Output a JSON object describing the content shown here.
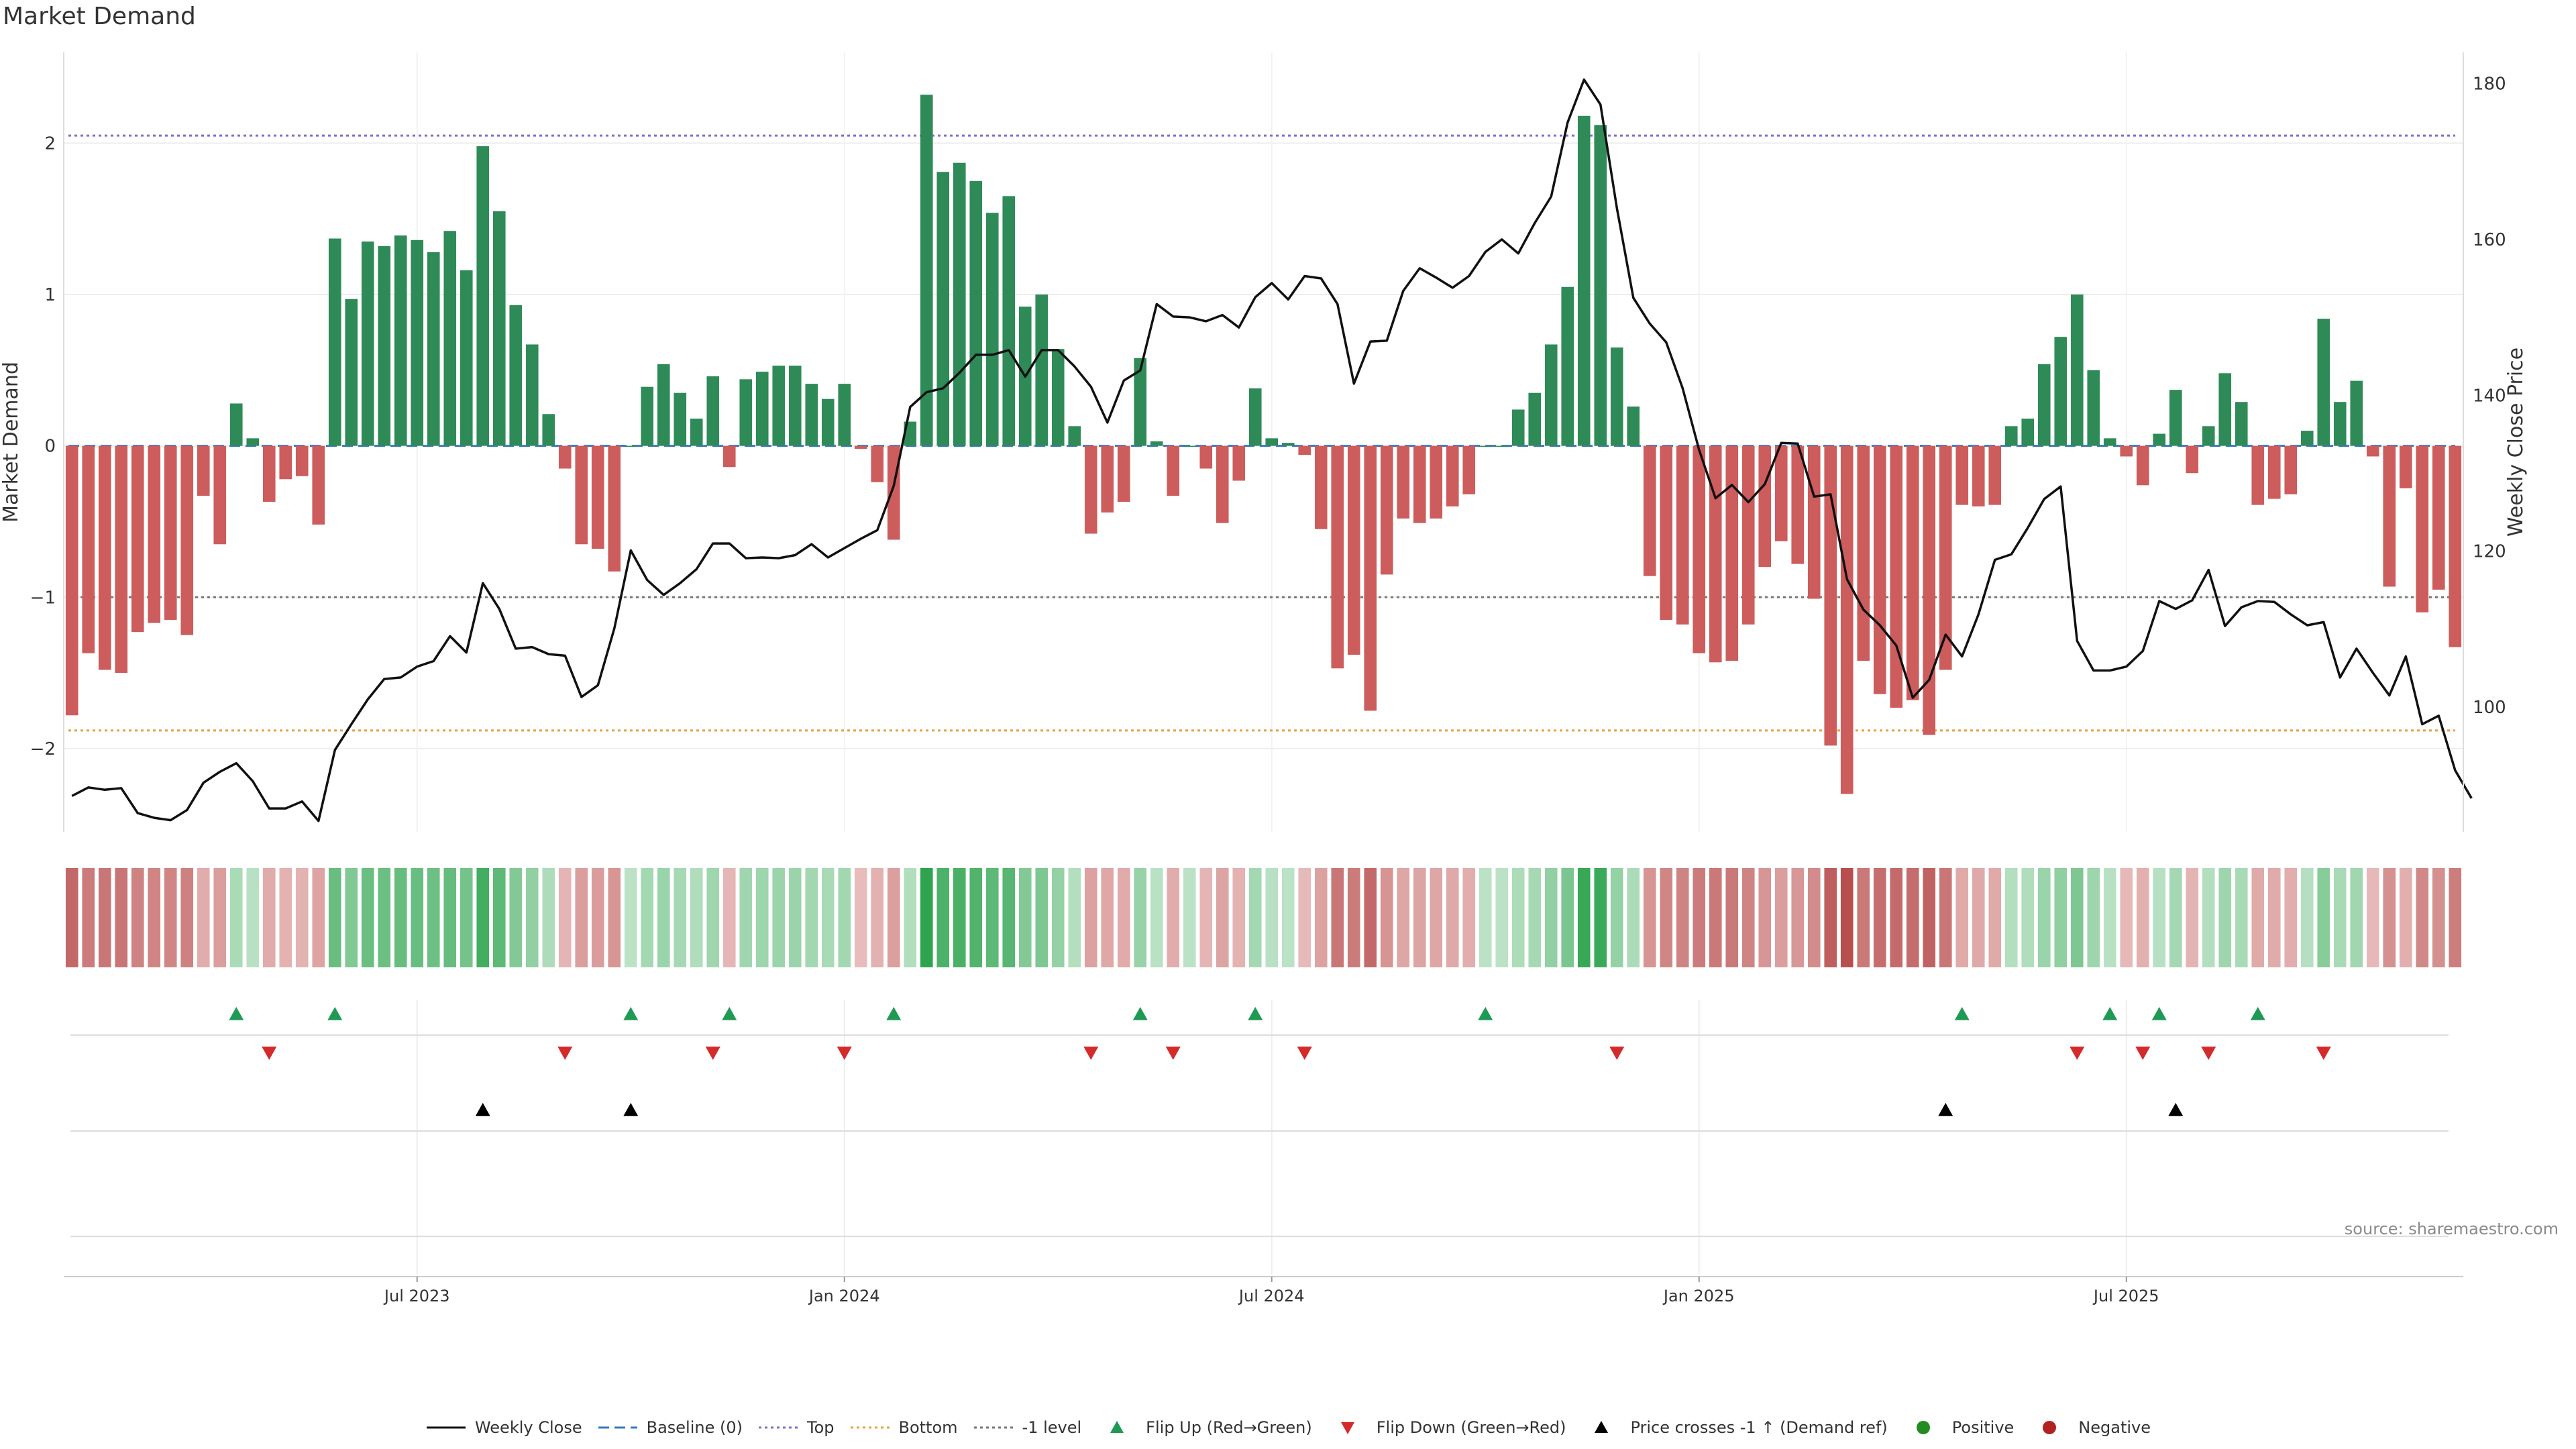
{
  "chart_data": {
    "type": "bar",
    "title": "Market Demand",
    "source": "source: sharemaestro.com",
    "ylabel": "Market Demand",
    "y2label": "Weekly Close Price",
    "ylim": [
      -2.55,
      2.6
    ],
    "y2lim": [
      84,
      184
    ],
    "yticks": [
      2,
      1,
      0,
      -1,
      -2
    ],
    "yticks_labels": [
      "2",
      "1",
      "0",
      "−1",
      "−2"
    ],
    "y2ticks": [
      180,
      160,
      140,
      120,
      100
    ],
    "y2ticks_labels": [
      "180",
      "160",
      "140",
      "120",
      "100"
    ],
    "x_ticks": [
      {
        "index": 21,
        "label": "Jul 2023"
      },
      {
        "index": 47,
        "label": "Jan 2024"
      },
      {
        "index": 73,
        "label": "Jul 2024"
      },
      {
        "index": 99,
        "label": "Jan 2025"
      },
      {
        "index": 125,
        "label": "Jul 2025"
      }
    ],
    "reference_lines": {
      "top": 2.05,
      "bottom": -1.88,
      "minus_one": -1.0,
      "baseline": 0
    },
    "colors": {
      "positive": "#2e8b57",
      "negative": "#cd5c5c",
      "line": "#111111",
      "top": "#7b6fd0",
      "bottom": "#e8a040",
      "minus_one": "#777777",
      "baseline": "#3a78c0",
      "flip_up": "#1f9a55",
      "flip_down": "#d42a2a",
      "cross": "#000000",
      "pos_dot": "#228b22",
      "neg_dot": "#b22222"
    },
    "demand": [
      -1.78,
      -1.37,
      -1.48,
      -1.5,
      -1.23,
      -1.17,
      -1.15,
      -1.25,
      -0.33,
      -0.65,
      0.28,
      0.05,
      -0.37,
      -0.22,
      -0.2,
      -0.52,
      1.37,
      0.97,
      1.35,
      1.32,
      1.39,
      1.36,
      1.28,
      1.42,
      1.16,
      1.98,
      1.55,
      0.93,
      0.67,
      0.21,
      -0.15,
      -0.65,
      -0.68,
      -0.83,
      0.0,
      0.39,
      0.54,
      0.35,
      0.18,
      0.46,
      -0.14,
      0.44,
      0.49,
      0.53,
      0.53,
      0.41,
      0.31,
      0.41,
      -0.02,
      -0.24,
      -0.62,
      0.16,
      2.32,
      1.81,
      1.87,
      1.75,
      1.54,
      1.65,
      0.92,
      1.0,
      0.64,
      0.13,
      -0.58,
      -0.44,
      -0.37,
      0.58,
      0.03,
      -0.33,
      0.0,
      -0.15,
      -0.51,
      -0.23,
      0.38,
      0.05,
      0.02,
      -0.06,
      -0.55,
      -1.47,
      -1.38,
      -1.75,
      -0.85,
      -0.48,
      -0.51,
      -0.48,
      -0.4,
      -0.32,
      0.0,
      0.0,
      0.24,
      0.35,
      0.67,
      1.05,
      2.18,
      2.12,
      0.65,
      0.26,
      -0.86,
      -1.15,
      -1.18,
      -1.37,
      -1.43,
      -1.42,
      -1.18,
      -0.8,
      -0.63,
      -0.78,
      -1.01,
      -1.98,
      -2.3,
      -1.42,
      -1.64,
      -1.73,
      -1.68,
      -1.91,
      -1.48,
      -0.39,
      -0.4,
      -0.39,
      0.13,
      0.18,
      0.54,
      0.72,
      1.0,
      0.5,
      0.05,
      -0.07,
      -0.26,
      0.08,
      0.37,
      -0.18,
      0.13,
      0.48,
      0.29,
      -0.39,
      -0.35,
      -0.32,
      0.1,
      0.84,
      0.29,
      0.43,
      -0.07,
      -0.93,
      -0.28,
      -1.1,
      -0.95,
      -1.33
    ],
    "close": [
      88.6,
      89.7,
      89.4,
      89.6,
      86.4,
      85.8,
      85.5,
      86.8,
      90.3,
      91.7,
      92.8,
      90.5,
      87.0,
      87.0,
      87.9,
      85.4,
      94.5,
      97.8,
      101.0,
      103.6,
      103.8,
      105.2,
      105.9,
      109.1,
      107.0,
      115.9,
      112.6,
      107.5,
      107.7,
      106.8,
      106.6,
      101.3,
      102.8,
      110.1,
      120.1,
      116.3,
      114.4,
      115.9,
      117.7,
      121.0,
      121.0,
      119.1,
      119.2,
      119.1,
      119.5,
      120.9,
      119.2,
      120.4,
      121.6,
      122.7,
      128.4,
      138.5,
      140.4,
      140.9,
      142.9,
      145.2,
      145.2,
      145.8,
      142.4,
      145.8,
      145.8,
      143.7,
      141.1,
      136.5,
      141.9,
      143.2,
      151.7,
      150.1,
      150.0,
      149.5,
      150.3,
      148.7,
      152.6,
      154.4,
      152.3,
      155.3,
      155.0,
      151.7,
      141.5,
      146.9,
      147.0,
      153.4,
      156.3,
      155.1,
      153.8,
      155.3,
      158.4,
      160.0,
      158.2,
      162.1,
      165.5,
      175.0,
      180.5,
      177.3,
      164.0,
      152.5,
      149.2,
      146.8,
      140.9,
      133.0,
      126.8,
      128.5,
      126.3,
      128.6,
      133.9,
      133.8,
      127.0,
      127.3,
      116.4,
      112.5,
      110.5,
      107.9,
      101.2,
      103.5,
      109.3,
      106.5,
      111.9,
      118.9,
      119.6,
      123.0,
      126.7,
      128.3,
      108.5,
      104.7,
      104.7,
      105.2,
      107.2,
      113.6,
      112.6,
      113.7,
      117.6,
      110.4,
      112.8,
      113.6,
      113.5,
      111.9,
      110.5,
      110.9,
      103.8,
      107.5,
      104.4,
      101.5,
      106.5,
      97.8,
      98.9,
      91.9,
      88.3
    ],
    "heat_strip": "weekly demand intensity colour strip",
    "flip_up": [
      10,
      16,
      34,
      40,
      50,
      65,
      72,
      86,
      115,
      124,
      127,
      133
    ],
    "flip_down": [
      12,
      30,
      39,
      47,
      62,
      67,
      75,
      94,
      122,
      126,
      130,
      137
    ],
    "price_cross_up": [
      25,
      34,
      114,
      128
    ],
    "legend": [
      {
        "key": "line",
        "label": "Weekly Close"
      },
      {
        "key": "baseline",
        "label": "Baseline (0)"
      },
      {
        "key": "top",
        "label": "Top"
      },
      {
        "key": "bottom",
        "label": "Bottom"
      },
      {
        "key": "minus",
        "label": "-1 level"
      },
      {
        "key": "flipup",
        "label": "Flip Up (Red→Green)"
      },
      {
        "key": "flipdown",
        "label": "Flip Down (Green→Red)"
      },
      {
        "key": "cross",
        "label": "Price crosses -1 ↑ (Demand ref)"
      },
      {
        "key": "posdot",
        "label": "Positive"
      },
      {
        "key": "negdot",
        "label": "Negative"
      }
    ]
  }
}
